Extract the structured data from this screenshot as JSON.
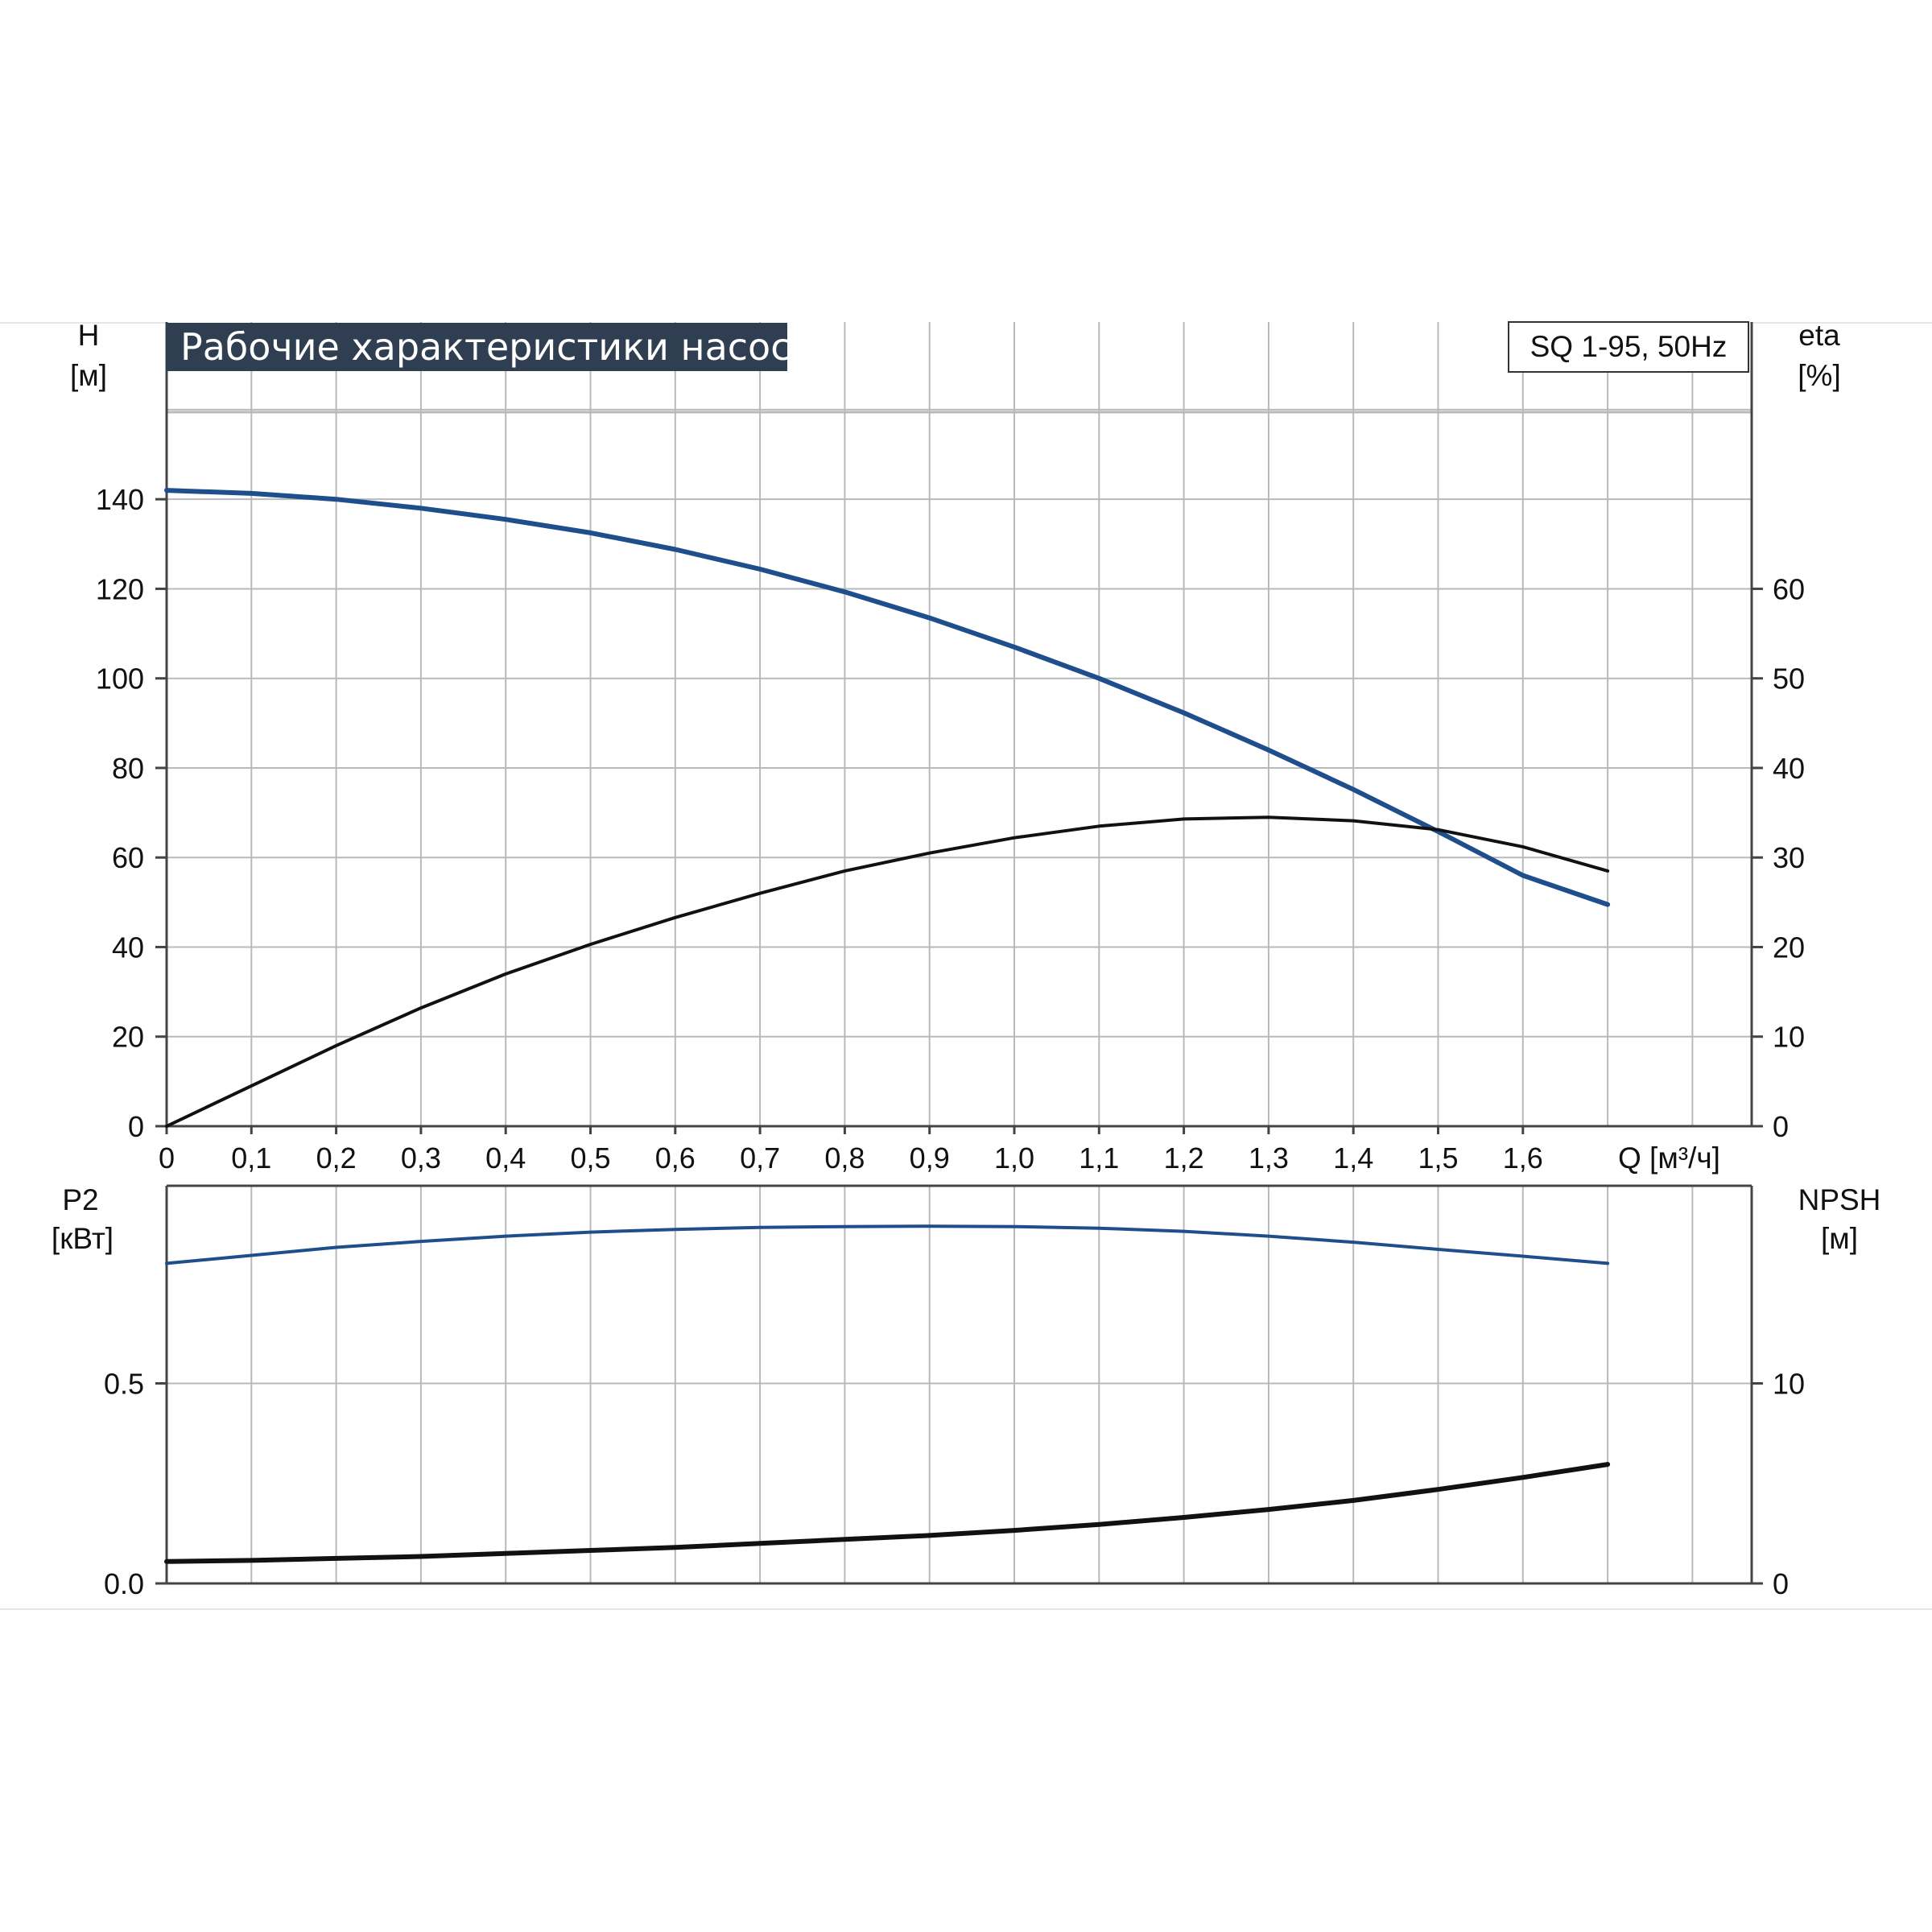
{
  "chart_title": "Рабочие характеристики насоса",
  "model_label": "SQ 1-95, 50Hz",
  "axes": {
    "h_top": "H",
    "h_unit": "[м]",
    "eta_top": "eta",
    "eta_unit": "[%]",
    "p2_top": "P2",
    "p2_unit": "[кВт]",
    "npsh_top": "NPSH",
    "npsh_unit": "[м]",
    "q_label": "Q [м³/ч]"
  },
  "colors": {
    "blue_curve": "#1f4e8c",
    "black_curve": "#111111",
    "grid": "#b9b9b9",
    "title_bg": "#2f3f51"
  },
  "chart_data": [
    {
      "type": "line",
      "title": "Рабочие характеристики насоса",
      "xlabel": "Q [м³/ч]",
      "ylabel": "H [м]",
      "ylabel_right": "eta [%]",
      "xlim": [
        0,
        1.85
      ],
      "ylim": [
        0,
        160
      ],
      "y2lim": [
        0,
        80
      ],
      "x_ticks": [
        "0",
        "0,1",
        "0,2",
        "0,3",
        "0,4",
        "0,5",
        "0,6",
        "0,7",
        "0,8",
        "0,9",
        "1,0",
        "1,1",
        "1,2",
        "1,3",
        "1,4",
        "1,5",
        "1,6"
      ],
      "y_ticks": [
        "0",
        "20",
        "40",
        "60",
        "80",
        "100",
        "120",
        "140"
      ],
      "y2_ticks": [
        "0",
        "10",
        "20",
        "30",
        "40",
        "50",
        "60"
      ],
      "grid": true,
      "series": [
        {
          "axis": "left",
          "color": "#1f4e8c",
          "x": [
            0,
            0.1,
            0.2,
            0.3,
            0.4,
            0.5,
            0.6,
            0.7,
            0.8,
            0.9,
            1.0,
            1.1,
            1.2,
            1.3,
            1.4,
            1.5,
            1.6,
            1.7
          ],
          "y": [
            142,
            141.3,
            140,
            138,
            135.5,
            132.5,
            128.8,
            124.4,
            119.3,
            113.5,
            107,
            100,
            92.3,
            84,
            75.2,
            65.8,
            56,
            49.5
          ]
        },
        {
          "axis": "right",
          "color": "#111111",
          "x": [
            0,
            0.1,
            0.2,
            0.3,
            0.4,
            0.5,
            0.6,
            0.7,
            0.8,
            0.9,
            1.0,
            1.1,
            1.2,
            1.3,
            1.4,
            1.5,
            1.6,
            1.7
          ],
          "y": [
            0,
            4.5,
            9,
            13.2,
            17,
            20.3,
            23.3,
            26,
            28.5,
            30.5,
            32.2,
            33.5,
            34.3,
            34.5,
            34.1,
            33.1,
            31.2,
            28.5
          ]
        }
      ]
    },
    {
      "type": "line",
      "xlabel": "Q [м³/ч]",
      "ylabel": "P2 [кВт]",
      "ylabel_right": "NPSH [м]",
      "xlim": [
        0,
        1.85
      ],
      "ylim": [
        0,
        1.0
      ],
      "y2lim": [
        0,
        20
      ],
      "y_ticks": [
        "0.0",
        "0.5"
      ],
      "y2_ticks": [
        "0",
        "10"
      ],
      "grid": true,
      "series": [
        {
          "axis": "left",
          "color": "#1f4e8c",
          "x": [
            0,
            0.1,
            0.2,
            0.3,
            0.4,
            0.5,
            0.6,
            0.7,
            0.8,
            0.9,
            1.0,
            1.1,
            1.2,
            1.3,
            1.4,
            1.5,
            1.6,
            1.7
          ],
          "y": [
            0.8,
            0.82,
            0.84,
            0.855,
            0.868,
            0.878,
            0.885,
            0.89,
            0.892,
            0.893,
            0.892,
            0.888,
            0.88,
            0.868,
            0.853,
            0.835,
            0.818,
            0.8
          ]
        },
        {
          "axis": "right",
          "color": "#111111",
          "x": [
            0,
            0.1,
            0.2,
            0.3,
            0.4,
            0.5,
            0.6,
            0.7,
            0.8,
            0.9,
            1.0,
            1.1,
            1.2,
            1.3,
            1.4,
            1.5,
            1.6,
            1.7
          ],
          "y": [
            1.1,
            1.15,
            1.25,
            1.35,
            1.5,
            1.65,
            1.8,
            2,
            2.2,
            2.4,
            2.65,
            2.95,
            3.3,
            3.7,
            4.15,
            4.7,
            5.3,
            5.95
          ]
        }
      ]
    }
  ]
}
